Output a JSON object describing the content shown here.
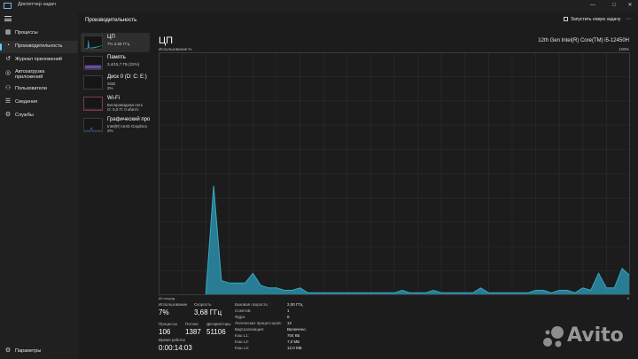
{
  "window": {
    "title": "Диспетчер задач",
    "controls": [
      "—",
      "□",
      "✕"
    ]
  },
  "nav": {
    "items": [
      {
        "label": "Процессы",
        "icon": "grid-icon"
      },
      {
        "label": "Производительность",
        "icon": "performance-icon",
        "active": true
      },
      {
        "label": "Журнал приложений",
        "icon": "history-icon"
      },
      {
        "label": "Автозагрузка приложений",
        "icon": "startup-icon"
      },
      {
        "label": "Пользователи",
        "icon": "users-icon"
      },
      {
        "label": "Сведения",
        "icon": "details-icon"
      },
      {
        "label": "Службы",
        "icon": "services-icon"
      }
    ],
    "settings": "Параметры"
  },
  "header": {
    "title": "Производительность",
    "run_task": "Запустить новую задачу",
    "more": "⋯"
  },
  "devices": [
    {
      "name": "ЦП",
      "lines": [
        "7% 3,68 ГГц"
      ],
      "active": true
    },
    {
      "name": "Память",
      "lines": [
        "3,4/15,7 ГБ (22%)"
      ]
    },
    {
      "name": "Диск 0 (D: C: E:)",
      "lines": [
        "SSD",
        "2%"
      ]
    },
    {
      "name": "Wi-Fi",
      "lines": [
        "Беспроводная сеть",
        "О: 0,0 П: 0 кбит/с"
      ]
    },
    {
      "name": "Графический про",
      "lines": [
        "Intel(R) UHD Graphics",
        "2%"
      ]
    }
  ],
  "panel": {
    "title": "ЦП",
    "model": "12th Gen Intel(R) Core(TM) i5-12450H",
    "util_label": "Использование %",
    "util_max": "100%",
    "axis_left": "60 секунд",
    "axis_right": "0"
  },
  "stats": {
    "utilization": {
      "label": "Использование",
      "value": "7%"
    },
    "speed": {
      "label": "Скорость",
      "value": "3,68 ГГц"
    },
    "processes": {
      "label": "Процессы",
      "value": "106"
    },
    "threads": {
      "label": "Потоки",
      "value": "1387"
    },
    "handles": {
      "label": "Дескрипторы",
      "value": "51106"
    },
    "uptime": {
      "label": "Время работы",
      "value": "0:00:14:03"
    }
  },
  "specs": [
    {
      "k": "Базовая скорость:",
      "v": "2,00 ГГц"
    },
    {
      "k": "Сокетов:",
      "v": "1"
    },
    {
      "k": "Ядра:",
      "v": "8"
    },
    {
      "k": "Логических процессоров:",
      "v": "12"
    },
    {
      "k": "Виртуализация:",
      "v": "Включено"
    },
    {
      "k": "Кэш L1:",
      "v": "704 КБ"
    },
    {
      "k": "Кэш L2:",
      "v": "7,0 МБ"
    },
    {
      "k": "Кэш L3:",
      "v": "12,0 МБ"
    }
  ],
  "chart_data": {
    "type": "area",
    "ylim": [
      0,
      100
    ],
    "x": [
      60,
      59,
      58,
      57,
      56,
      55,
      54,
      53,
      52,
      51,
      50,
      49,
      48,
      47,
      46,
      45,
      44,
      43,
      42,
      41,
      40,
      39,
      38,
      37,
      36,
      35,
      34,
      33,
      32,
      31,
      30,
      29,
      28,
      27,
      26,
      25,
      24,
      23,
      22,
      21,
      20,
      19,
      18,
      17,
      16,
      15,
      14,
      13,
      12,
      11,
      10,
      9,
      8,
      7,
      6,
      5,
      4,
      3,
      2,
      1,
      0
    ],
    "values": [
      0,
      0,
      0,
      0,
      0,
      0,
      0,
      45,
      6,
      5,
      5,
      5,
      9,
      4,
      3,
      3,
      2,
      2,
      3,
      1,
      1,
      1,
      1,
      1,
      1,
      1,
      1,
      1,
      1,
      1,
      1,
      2,
      1,
      1,
      1,
      2,
      1,
      1,
      1,
      1,
      1,
      3,
      1,
      1,
      1,
      1,
      1,
      1,
      2,
      2,
      1,
      2,
      2,
      1,
      3,
      2,
      9,
      3,
      3,
      11,
      8
    ],
    "colors": {
      "line": "#3aa7c4",
      "fill": "#2a8da8",
      "grid": "#2d2d2d",
      "border": "#3a3a3a"
    }
  },
  "brand": {
    "name": "Avito"
  }
}
